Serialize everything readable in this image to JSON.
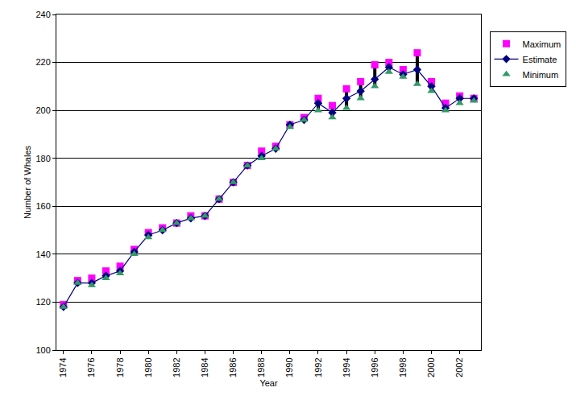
{
  "chart_data": {
    "type": "scatter",
    "x_label": "Year",
    "y_label": "Number of Whales",
    "x": [
      1974,
      1975,
      1976,
      1977,
      1978,
      1979,
      1980,
      1981,
      1982,
      1983,
      1984,
      1985,
      1986,
      1987,
      1988,
      1989,
      1990,
      1991,
      1992,
      1993,
      1994,
      1995,
      1996,
      1997,
      1998,
      1999,
      2000,
      2001,
      2002,
      2003
    ],
    "series": [
      {
        "name": "Maximum",
        "color": "#ff00ff",
        "marker": "square",
        "line_style": "none",
        "values": [
          119,
          129,
          130,
          133,
          135,
          142,
          149,
          151,
          153,
          156,
          156,
          163,
          170,
          177,
          183,
          185,
          194,
          197,
          205,
          202,
          209,
          212,
          219,
          220,
          217,
          224,
          212,
          203,
          206,
          205
        ]
      },
      {
        "name": "Estimate",
        "color": "#000080",
        "marker": "diamond",
        "line_style": "solid",
        "values": [
          118,
          128,
          128,
          131,
          133,
          141,
          148,
          150,
          153,
          155,
          156,
          163,
          170,
          177,
          181,
          184,
          194,
          196,
          203,
          199,
          205,
          208,
          213,
          218,
          215,
          217,
          210,
          201,
          205,
          205
        ]
      },
      {
        "name": "Minimum",
        "color": "#339966",
        "marker": "triangle-up",
        "line_style": "none",
        "values": [
          118,
          128,
          127,
          130,
          132,
          140,
          147,
          150,
          153,
          155,
          156,
          163,
          170,
          177,
          180,
          184,
          193,
          196,
          200,
          197,
          201,
          205,
          210,
          216,
          214,
          211,
          208,
          200,
          203,
          204
        ]
      }
    ],
    "xlim": [
      1973.5,
      2003.5
    ],
    "xticks": [
      1974,
      1976,
      1978,
      1980,
      1982,
      1984,
      1986,
      1988,
      1990,
      1992,
      1994,
      1996,
      1998,
      2000,
      2002
    ],
    "ylim": [
      100,
      240
    ],
    "yticks": [
      100,
      120,
      140,
      160,
      180,
      200,
      220,
      240
    ],
    "grid": true,
    "legend": "right"
  }
}
